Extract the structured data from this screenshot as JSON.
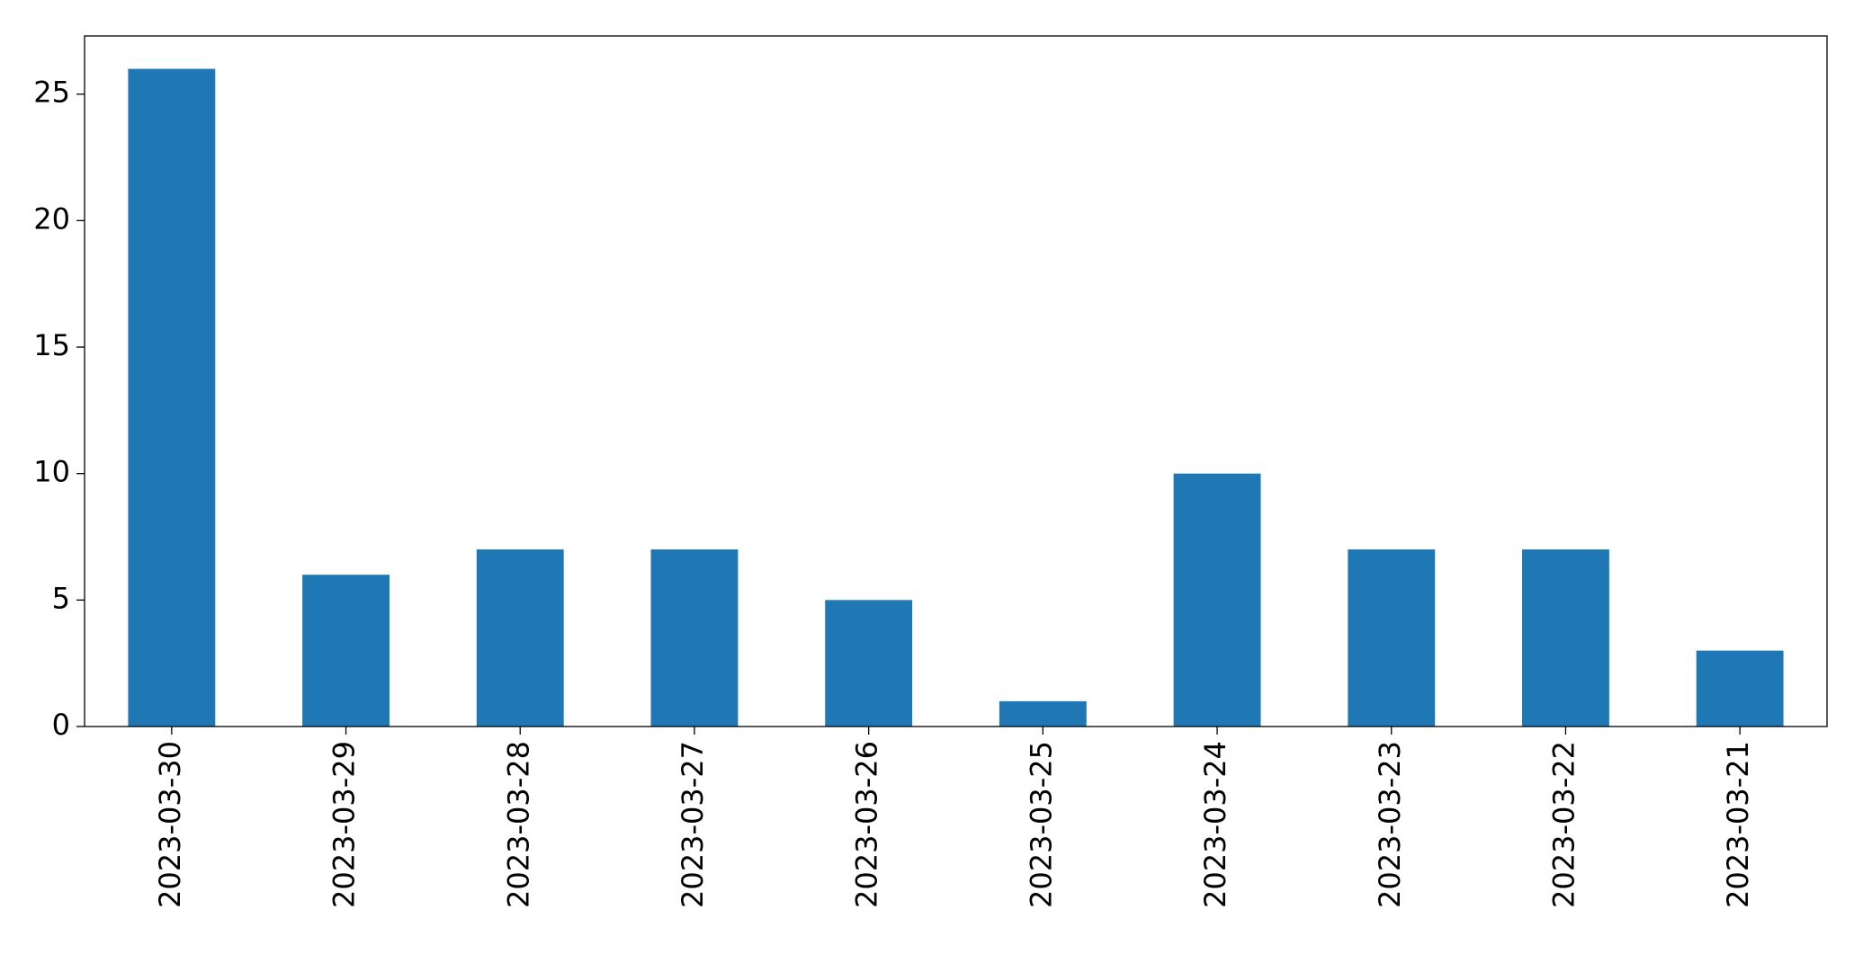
{
  "chart_data": {
    "type": "bar",
    "categories": [
      "2023-03-30",
      "2023-03-29",
      "2023-03-28",
      "2023-03-27",
      "2023-03-26",
      "2023-03-25",
      "2023-03-24",
      "2023-03-23",
      "2023-03-22",
      "2023-03-21"
    ],
    "values": [
      26,
      6,
      7,
      7,
      5,
      1,
      10,
      7,
      7,
      3
    ],
    "color": "#1f77b4",
    "ylim": [
      0,
      27.3
    ],
    "yticks": [
      0,
      5,
      10,
      15,
      20,
      25
    ],
    "grid": false
  }
}
